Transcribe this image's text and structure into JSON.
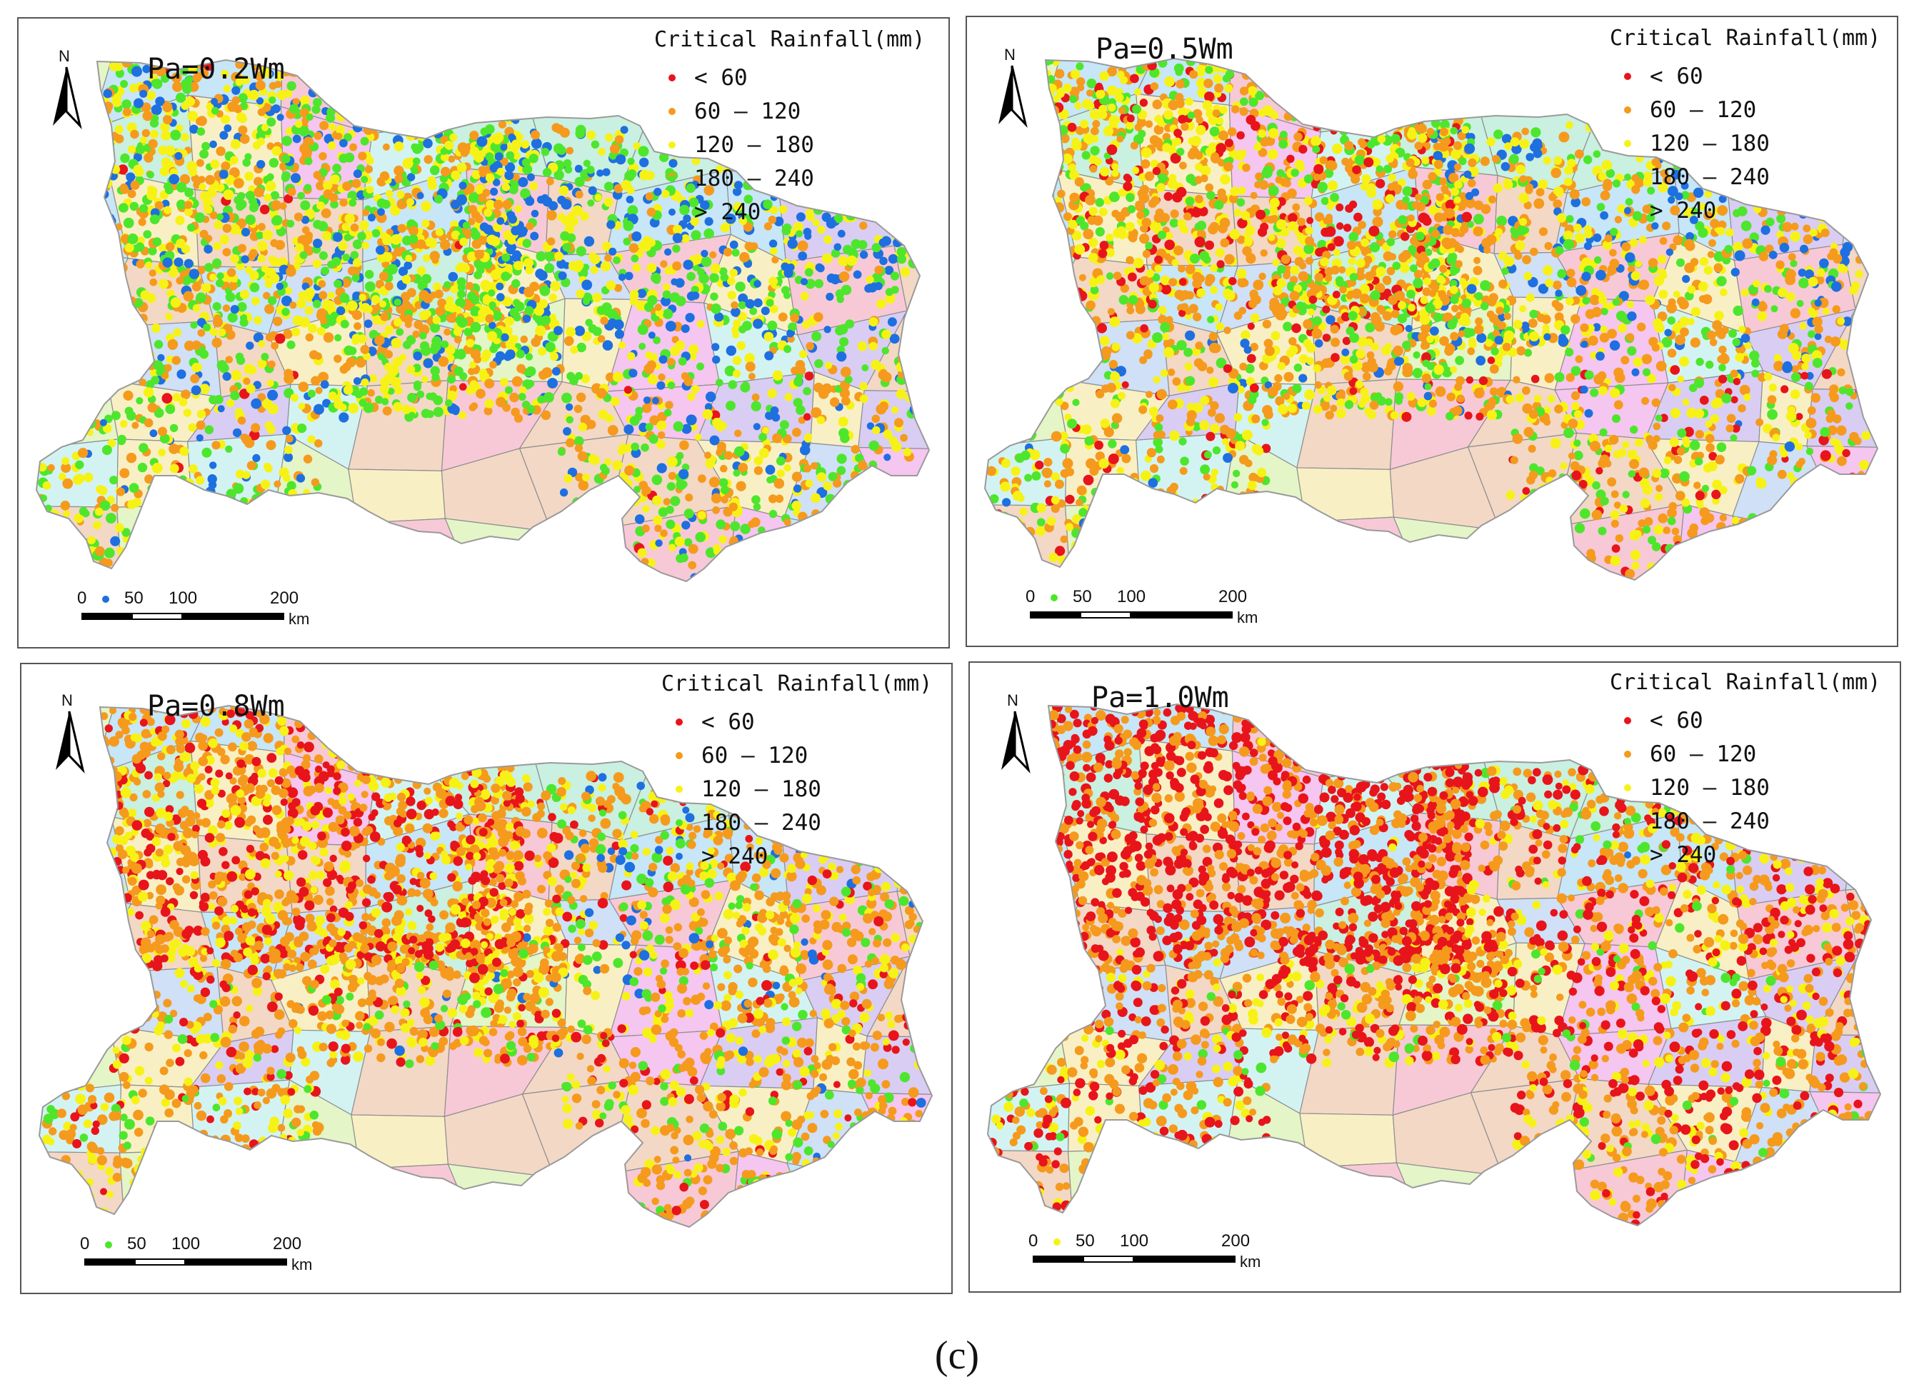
{
  "caption": "(c)",
  "north_label": "N",
  "legend": {
    "title": "Critical Rainfall(mm)",
    "classes": [
      {
        "label": "< 60",
        "color": "#e8141b"
      },
      {
        "label": "60 — 120",
        "color": "#f59a1d"
      },
      {
        "label": "120 — 180",
        "color": "#f7f216"
      },
      {
        "label": "180 — 240",
        "color": "#4de62d"
      },
      {
        "label": "> 240",
        "color": "#1e6fe0"
      }
    ]
  },
  "scale_bar": {
    "ticks": [
      "0",
      "50",
      "100",
      "200"
    ],
    "unit": "km"
  },
  "panels": [
    {
      "title": "Pa=0.2Wm",
      "weights": [
        0.01,
        0.3,
        0.3,
        0.27,
        0.12
      ]
    },
    {
      "title": "Pa=0.5Wm",
      "weights": [
        0.08,
        0.38,
        0.3,
        0.19,
        0.05
      ]
    },
    {
      "title": "Pa=0.8Wm",
      "weights": [
        0.14,
        0.48,
        0.26,
        0.11,
        0.01
      ]
    },
    {
      "title": "Pa=1.0Wm",
      "weights": [
        0.33,
        0.44,
        0.18,
        0.05,
        0.0
      ]
    }
  ],
  "colors": {
    "district_fills": [
      "#f7c9d6",
      "#c9f0e0",
      "#d9cdf3",
      "#c7e6f7",
      "#f3d8c6",
      "#e4f5c8",
      "#f5c6ef",
      "#cfe0f7",
      "#f8f0c4",
      "#d3f3f3"
    ],
    "district_stroke": "#8e8e8e"
  }
}
